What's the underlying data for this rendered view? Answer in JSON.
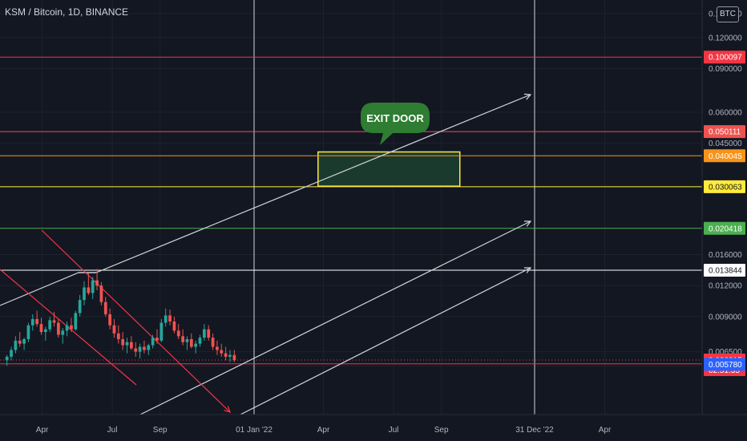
{
  "header": {
    "symbol": "KSM / Bitcoin, 1D, BINANCE",
    "currency_button": "BTC"
  },
  "chart_data": {
    "type": "candlestick",
    "instrument": "KSM / Bitcoin",
    "interval": "1D",
    "exchange": "BINANCE",
    "y_scale": "log",
    "ylim": [
      0.0055,
      0.17
    ],
    "y_ticks": [
      "0.150000",
      "0.120000",
      "0.090000",
      "0.060000",
      "0.045000",
      "0.030000",
      "0.016000",
      "0.012000",
      "0.009000",
      "0.006500",
      "0.005700"
    ],
    "x_ticks": [
      {
        "label": "Apr",
        "date": "2021-04-01"
      },
      {
        "label": "Jul",
        "date": "2021-07-01"
      },
      {
        "label": "Sep",
        "date": "2021-09-01"
      },
      {
        "label": "01 Jan '22",
        "date": "2022-01-01",
        "highlighted": true
      },
      {
        "label": "Apr",
        "date": "2022-04-01"
      },
      {
        "label": "Jul",
        "date": "2022-07-01"
      },
      {
        "label": "Sep",
        "date": "2022-09-01"
      },
      {
        "label": "31 Dec '22",
        "date": "2022-12-31",
        "highlighted": true
      },
      {
        "label": "Apr",
        "date": "2023-04-01"
      }
    ],
    "price_lines": [
      {
        "value": "0.100097",
        "color": "#f23645",
        "text_color": "#ffffff"
      },
      {
        "value": "0.050111",
        "color": "#ef5350",
        "text_color": "#ffffff"
      },
      {
        "value": "0.040045",
        "color": "#f7931a",
        "text_color": "#ffffff"
      },
      {
        "value": "0.030063",
        "color": "#ffeb3b",
        "text_color": "#131722"
      },
      {
        "value": "0.020418",
        "color": "#4caf50",
        "text_color": "#ffffff"
      },
      {
        "value": "0.013844",
        "color": "#ffffff",
        "text_color": "#131722"
      },
      {
        "value": "0.005804",
        "color": "#f23645",
        "text_color": "#ffffff"
      }
    ],
    "last_price": {
      "value": "0.006015",
      "countdown": "02:51:35",
      "color": "#f23645"
    },
    "extra_tag": {
      "value": "0.005780",
      "color": "#2962ff"
    },
    "vertical_lines": [
      {
        "date": "2022-01-01"
      },
      {
        "date": "2022-12-31"
      }
    ],
    "annotation": {
      "text": "EXIT DOOR",
      "color": "#2e7d32"
    },
    "target_zone": {
      "from_date": "2022-03-25",
      "to_date": "2022-09-25",
      "top": 0.0415,
      "bottom": 0.0302,
      "border": "#ffeb3b",
      "fill": "#1b3a2e"
    },
    "candles_ohlc": [
      [
        0.006,
        0.0063,
        0.0057,
        0.0062
      ],
      [
        0.0062,
        0.0068,
        0.006,
        0.0066
      ],
      [
        0.0066,
        0.0075,
        0.0064,
        0.0072
      ],
      [
        0.0072,
        0.0078,
        0.0068,
        0.007
      ],
      [
        0.007,
        0.0074,
        0.0066,
        0.0073
      ],
      [
        0.0073,
        0.0085,
        0.0071,
        0.0083
      ],
      [
        0.0083,
        0.0092,
        0.0079,
        0.0088
      ],
      [
        0.0088,
        0.0095,
        0.0082,
        0.0084
      ],
      [
        0.0084,
        0.0089,
        0.0076,
        0.0078
      ],
      [
        0.0078,
        0.0082,
        0.0072,
        0.008
      ],
      [
        0.008,
        0.009,
        0.0078,
        0.0087
      ],
      [
        0.0087,
        0.0094,
        0.0082,
        0.0085
      ],
      [
        0.0085,
        0.0088,
        0.0074,
        0.0076
      ],
      [
        0.0076,
        0.0081,
        0.007,
        0.0079
      ],
      [
        0.0079,
        0.0086,
        0.0075,
        0.0083
      ],
      [
        0.0083,
        0.0089,
        0.0078,
        0.008
      ],
      [
        0.008,
        0.0095,
        0.0079,
        0.0093
      ],
      [
        0.0093,
        0.011,
        0.009,
        0.0105
      ],
      [
        0.0105,
        0.0125,
        0.01,
        0.0118
      ],
      [
        0.0118,
        0.0135,
        0.011,
        0.0112
      ],
      [
        0.0112,
        0.013,
        0.0106,
        0.0126
      ],
      [
        0.0126,
        0.014,
        0.0115,
        0.012
      ],
      [
        0.012,
        0.0124,
        0.01,
        0.0103
      ],
      [
        0.0103,
        0.0108,
        0.009,
        0.0092
      ],
      [
        0.0092,
        0.0097,
        0.008,
        0.0083
      ],
      [
        0.0083,
        0.0088,
        0.0074,
        0.0077
      ],
      [
        0.0077,
        0.0083,
        0.007,
        0.0073
      ],
      [
        0.0073,
        0.0078,
        0.0066,
        0.0069
      ],
      [
        0.0069,
        0.0074,
        0.0064,
        0.0071
      ],
      [
        0.0071,
        0.0075,
        0.0066,
        0.0067
      ],
      [
        0.0067,
        0.0071,
        0.0062,
        0.0065
      ],
      [
        0.0065,
        0.007,
        0.0061,
        0.0068
      ],
      [
        0.0068,
        0.0072,
        0.0064,
        0.0066
      ],
      [
        0.0066,
        0.007,
        0.0063,
        0.0069
      ],
      [
        0.0069,
        0.0076,
        0.0067,
        0.0074
      ],
      [
        0.0074,
        0.008,
        0.007,
        0.0072
      ],
      [
        0.0072,
        0.0088,
        0.0071,
        0.0085
      ],
      [
        0.0085,
        0.0097,
        0.0082,
        0.0091
      ],
      [
        0.0091,
        0.0096,
        0.0083,
        0.0086
      ],
      [
        0.0086,
        0.009,
        0.0077,
        0.0079
      ],
      [
        0.0079,
        0.0084,
        0.0073,
        0.0075
      ],
      [
        0.0075,
        0.008,
        0.0069,
        0.0071
      ],
      [
        0.0071,
        0.0075,
        0.0066,
        0.0073
      ],
      [
        0.0073,
        0.0077,
        0.0067,
        0.0068
      ],
      [
        0.0068,
        0.0072,
        0.0064,
        0.007
      ],
      [
        0.007,
        0.0076,
        0.0068,
        0.0074
      ],
      [
        0.0074,
        0.0084,
        0.0072,
        0.008
      ],
      [
        0.008,
        0.0083,
        0.0072,
        0.0074
      ],
      [
        0.0074,
        0.0077,
        0.0066,
        0.0068
      ],
      [
        0.0068,
        0.0072,
        0.0063,
        0.0066
      ],
      [
        0.0066,
        0.007,
        0.0062,
        0.0064
      ],
      [
        0.0064,
        0.0068,
        0.006,
        0.0062
      ],
      [
        0.0062,
        0.0066,
        0.0059,
        0.0063
      ],
      [
        0.0063,
        0.0066,
        0.0059,
        0.006
      ]
    ]
  }
}
